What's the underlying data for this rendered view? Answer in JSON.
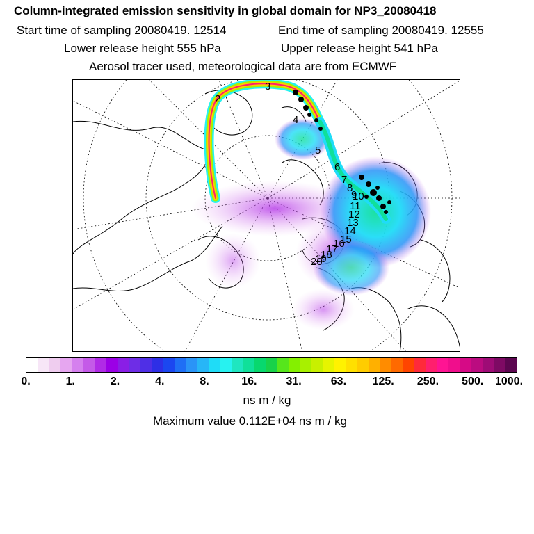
{
  "header": {
    "title": "Column-integrated emission sensitivity in global domain for NP3_20080418",
    "start_time": "Start time of sampling 20080419. 12514",
    "end_time": "End time of sampling 20080419. 12555",
    "lower_height": "Lower release height  555 hPa",
    "upper_height": "Upper release height  541 hPa",
    "note": "Aerosol tracer used, meteorological data are from ECMWF"
  },
  "map": {
    "projection": "north-polar-stereographic",
    "track_labels": [
      "2",
      "3",
      "4",
      "5",
      "6",
      "7",
      "8",
      "9",
      "10",
      "11",
      "12",
      "13",
      "14",
      "15",
      "16",
      "17",
      "18",
      "19",
      "20"
    ]
  },
  "colorbar": {
    "colors": [
      "#ffffff",
      "#f7e6f7",
      "#efcdef",
      "#e6a6f0",
      "#d580ee",
      "#c45ae8",
      "#b02be6",
      "#9b00e6",
      "#8a1ee6",
      "#6e2de6",
      "#4f2fe6",
      "#2e2fe6",
      "#1b47f0",
      "#1f6ff5",
      "#2a94f7",
      "#27b6f7",
      "#1fdcf7",
      "#27f2f0",
      "#1fe6c0",
      "#10e09a",
      "#08d86e",
      "#18d24a",
      "#56e61c",
      "#84f000",
      "#a8f000",
      "#c8f000",
      "#e6f400",
      "#fff200",
      "#ffe000",
      "#ffcc00",
      "#ffb000",
      "#ff8c00",
      "#ff6a00",
      "#ff4500",
      "#ff2a3a",
      "#ff1f6e",
      "#ff1493",
      "#f00e8c",
      "#d60a86",
      "#bb0c80",
      "#9e0c76",
      "#7e0a64",
      "#5c0650"
    ],
    "tick_labels": [
      "0.",
      "1.",
      "2.",
      "4.",
      "8.",
      "16.",
      "31.",
      "63.",
      "125.",
      "250.",
      "500.",
      "1000."
    ],
    "units": "ns m / kg"
  },
  "footer": {
    "max_value": "Maximum value  0.112E+04 ns m / kg"
  }
}
